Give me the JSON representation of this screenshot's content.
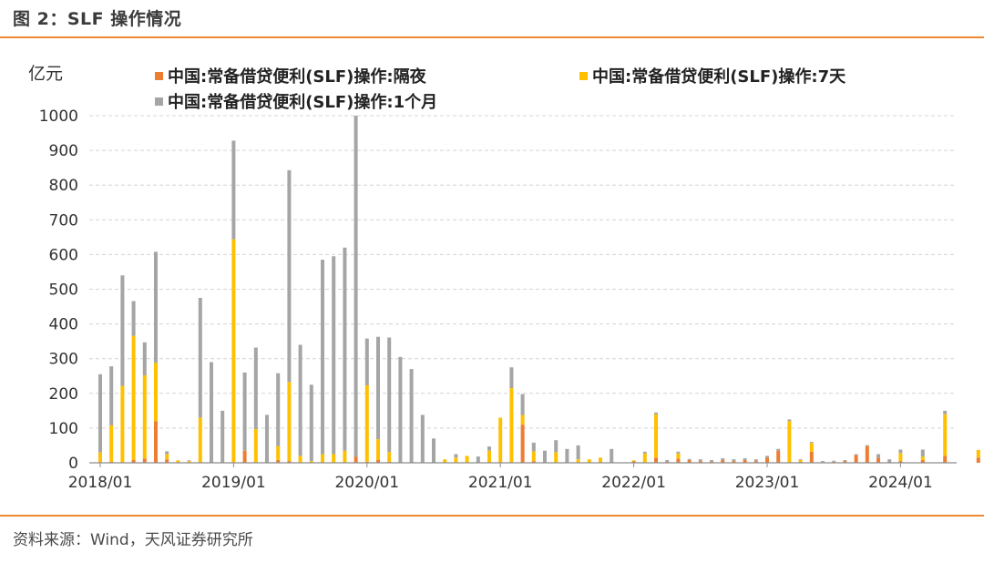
{
  "header": {
    "title": "图 2：SLF 操作情况"
  },
  "footer": {
    "source": "资料来源：Wind，天风证券研究所"
  },
  "colors": {
    "overnight": "#ed7d31",
    "seven_day": "#ffc000",
    "one_month": "#a5a5a5",
    "accent_rule": "#ee8a33"
  },
  "chart_data": {
    "type": "bar",
    "stacked": true,
    "unit_label": "亿元",
    "ylim": [
      0,
      1000
    ],
    "yticks": [
      "0",
      "100",
      "200",
      "300",
      "400",
      "500",
      "600",
      "700",
      "800",
      "900",
      "1000"
    ],
    "xtick_labels": [
      {
        "label": "2018/01",
        "at": 0
      },
      {
        "label": "2019/01",
        "at": 12
      },
      {
        "label": "2020/01",
        "at": 24
      },
      {
        "label": "2021/01",
        "at": 36
      },
      {
        "label": "2022/01",
        "at": 48
      },
      {
        "label": "2023/01",
        "at": 60
      },
      {
        "label": "2024/01",
        "at": 72
      }
    ],
    "categories": [
      "2018/01",
      "2018/02",
      "2018/03",
      "2018/04",
      "2018/05",
      "2018/06",
      "2018/07",
      "2018/08",
      "2018/09",
      "2018/10",
      "2018/11",
      "2018/12",
      "2019/01",
      "2019/02",
      "2019/03",
      "2019/04",
      "2019/05",
      "2019/06",
      "2019/07",
      "2019/08",
      "2019/09",
      "2019/10",
      "2019/11",
      "2019/12",
      "2020/01",
      "2020/02",
      "2020/03",
      "2020/04",
      "2020/05",
      "2020/06",
      "2020/07",
      "2020/08",
      "2020/09",
      "2020/10",
      "2020/11",
      "2020/12",
      "2021/01",
      "2021/02",
      "2021/03",
      "2021/04",
      "2021/05",
      "2021/06",
      "2021/07",
      "2021/08",
      "2021/09",
      "2021/10",
      "2021/11",
      "2021/12",
      "2022/01",
      "2022/02",
      "2022/03",
      "2022/04",
      "2022/05",
      "2022/06",
      "2022/07",
      "2022/08",
      "2022/09",
      "2022/10",
      "2022/11",
      "2022/12",
      "2023/01",
      "2023/02",
      "2023/03",
      "2023/04",
      "2023/05",
      "2023/06",
      "2023/07",
      "2023/08",
      "2023/09",
      "2023/10",
      "2023/11",
      "2023/12",
      "2024/01",
      "2024/02",
      "2024/03",
      "2024/04",
      "2024/05",
      "2024/06",
      "2024/07",
      "2024/08"
    ],
    "series": [
      {
        "name": "中国:常备借贷便利(SLF)操作:隔夜",
        "values": [
          0,
          3,
          2,
          8,
          12,
          120,
          10,
          2,
          0,
          0,
          0,
          0,
          2,
          35,
          2,
          0,
          8,
          5,
          0,
          0,
          0,
          0,
          0,
          18,
          3,
          8,
          3,
          0,
          0,
          0,
          0,
          0,
          0,
          0,
          0,
          0,
          0,
          0,
          110,
          5,
          0,
          0,
          0,
          0,
          0,
          0,
          0,
          0,
          5,
          2,
          15,
          3,
          12,
          8,
          5,
          3,
          8,
          5,
          8,
          5,
          15,
          35,
          0,
          3,
          32,
          2,
          3,
          5,
          22,
          48,
          15,
          0,
          5,
          0,
          8,
          0,
          20,
          0,
          0,
          15
        ]
      },
      {
        "name": "中国:常备借贷便利(SLF)操作:7天",
        "values": [
          30,
          105,
          220,
          358,
          240,
          168,
          15,
          5,
          5,
          130,
          0,
          0,
          642,
          0,
          95,
          0,
          40,
          228,
          20,
          5,
          25,
          25,
          35,
          0,
          220,
          60,
          28,
          0,
          0,
          0,
          0,
          10,
          15,
          20,
          0,
          35,
          130,
          215,
          28,
          28,
          0,
          30,
          0,
          10,
          10,
          15,
          0,
          0,
          2,
          25,
          125,
          0,
          15,
          0,
          0,
          0,
          0,
          0,
          0,
          0,
          0,
          0,
          120,
          5,
          25,
          0,
          0,
          0,
          0,
          0,
          0,
          0,
          23,
          0,
          10,
          0,
          120,
          0,
          0,
          22
        ]
      },
      {
        "name": "中国:常备借贷便利(SLF)操作:1个月",
        "values": [
          225,
          170,
          318,
          100,
          95,
          320,
          8,
          0,
          2,
          345,
          290,
          150,
          284,
          225,
          235,
          138,
          210,
          610,
          320,
          220,
          560,
          570,
          585,
          982,
          135,
          295,
          330,
          305,
          270,
          138,
          70,
          0,
          10,
          0,
          18,
          12,
          0,
          60,
          60,
          25,
          35,
          35,
          40,
          40,
          0,
          0,
          40,
          0,
          0,
          5,
          5,
          5,
          5,
          3,
          5,
          5,
          5,
          5,
          5,
          5,
          5,
          5,
          5,
          2,
          3,
          3,
          3,
          3,
          3,
          3,
          10,
          10,
          10,
          0,
          20,
          0,
          10,
          0,
          0,
          0
        ]
      }
    ]
  }
}
